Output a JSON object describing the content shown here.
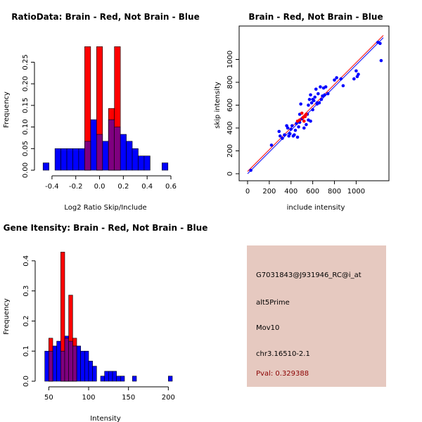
{
  "colors": {
    "red": "#ff0000",
    "blue": "#0000ff",
    "overlap": "#7f007f",
    "panel_bg": "#e6c9c0",
    "pval_text": "#8b0000"
  },
  "chart_data": [
    {
      "type": "histogram",
      "title": "RatioData: Brain - Red, Not Brain - Blue",
      "xlabel": "Log2 Ratio Skip/Include",
      "ylabel": "Frequency",
      "xlim": [
        -0.5,
        0.6
      ],
      "ylim": [
        0,
        0.28
      ],
      "xticks": [
        -0.4,
        -0.2,
        0.0,
        0.2,
        0.4,
        0.6
      ],
      "xtick_labels": [
        "-0.4",
        "-0.2",
        "0.0",
        "0.2",
        "0.4",
        "0.6"
      ],
      "yticks": [
        0.0,
        0.05,
        0.1,
        0.15,
        0.2,
        0.25
      ],
      "ytick_labels": [
        "0.00",
        "0.05",
        "0.10",
        "0.15",
        "0.20",
        "0.25"
      ],
      "series": [
        {
          "name": "Not Brain",
          "color": "#0000ff",
          "bins": [
            [
              -0.475,
              -0.425,
              0.017
            ],
            [
              -0.375,
              -0.325,
              0.05
            ],
            [
              -0.325,
              -0.275,
              0.05
            ],
            [
              -0.275,
              -0.225,
              0.05
            ],
            [
              -0.225,
              -0.175,
              0.05
            ],
            [
              -0.175,
              -0.125,
              0.05
            ],
            [
              -0.125,
              -0.075,
              0.067
            ],
            [
              -0.075,
              -0.025,
              0.117
            ],
            [
              -0.025,
              0.025,
              0.083
            ],
            [
              0.025,
              0.075,
              0.067
            ],
            [
              0.075,
              0.125,
              0.117
            ],
            [
              0.125,
              0.175,
              0.1
            ],
            [
              0.175,
              0.225,
              0.083
            ],
            [
              0.225,
              0.275,
              0.067
            ],
            [
              0.275,
              0.325,
              0.05
            ],
            [
              0.325,
              0.375,
              0.033
            ],
            [
              0.375,
              0.425,
              0.033
            ],
            [
              0.525,
              0.575,
              0.017
            ]
          ]
        },
        {
          "name": "Brain",
          "color": "#ff0000",
          "bins": [
            [
              -0.125,
              -0.075,
              0.286
            ],
            [
              -0.025,
              0.025,
              0.286
            ],
            [
              0.075,
              0.125,
              0.143
            ],
            [
              0.125,
              0.175,
              0.286
            ]
          ]
        }
      ]
    },
    {
      "type": "scatter",
      "title": "Brain - Red, Not Brain - Blue",
      "xlabel": "include intensity",
      "ylabel": "skip intensity",
      "xlim": [
        0,
        1250
      ],
      "ylim": [
        0,
        1200
      ],
      "xticks": [
        0,
        200,
        400,
        600,
        800,
        1000
      ],
      "xtick_labels": [
        "0",
        "200",
        "400",
        "600",
        "800",
        "1000"
      ],
      "yticks": [
        0,
        200,
        400,
        600,
        800,
        1000
      ],
      "ytick_labels": [
        "0",
        "200",
        "400",
        "600",
        "800",
        "1000"
      ],
      "lines": [
        {
          "name": "Brain fit",
          "color": "#ff0000",
          "points": [
            [
              0,
              20
            ],
            [
              1250,
              1210
            ]
          ]
        },
        {
          "name": "Not Brain fit",
          "color": "#0000ff",
          "points": [
            [
              0,
              0
            ],
            [
              1250,
              1190
            ]
          ]
        }
      ],
      "series": [
        {
          "name": "Not Brain",
          "color": "#0000ff",
          "points": [
            [
              30,
              30
            ],
            [
              220,
              250
            ],
            [
              290,
              370
            ],
            [
              300,
              330
            ],
            [
              320,
              310
            ],
            [
              340,
              340
            ],
            [
              360,
              420
            ],
            [
              370,
              400
            ],
            [
              380,
              330
            ],
            [
              390,
              350
            ],
            [
              400,
              390
            ],
            [
              410,
              420
            ],
            [
              420,
              330
            ],
            [
              430,
              340
            ],
            [
              440,
              380
            ],
            [
              450,
              440
            ],
            [
              460,
              320
            ],
            [
              470,
              410
            ],
            [
              480,
              520
            ],
            [
              490,
              610
            ],
            [
              500,
              480
            ],
            [
              520,
              400
            ],
            [
              530,
              500
            ],
            [
              540,
              430
            ],
            [
              550,
              520
            ],
            [
              560,
              600
            ],
            [
              570,
              650
            ],
            [
              580,
              690
            ],
            [
              590,
              620
            ],
            [
              600,
              560
            ],
            [
              610,
              640
            ],
            [
              620,
              670
            ],
            [
              630,
              740
            ],
            [
              640,
              610
            ],
            [
              650,
              700
            ],
            [
              660,
              620
            ],
            [
              670,
              760
            ],
            [
              680,
              650
            ],
            [
              690,
              680
            ],
            [
              700,
              750
            ],
            [
              710,
              690
            ],
            [
              720,
              760
            ],
            [
              740,
              700
            ],
            [
              800,
              820
            ],
            [
              820,
              840
            ],
            [
              860,
              830
            ],
            [
              880,
              770
            ],
            [
              980,
              830
            ],
            [
              1000,
              900
            ],
            [
              1010,
              850
            ],
            [
              1020,
              870
            ],
            [
              1200,
              1150
            ],
            [
              1220,
              1140
            ],
            [
              1230,
              990
            ],
            [
              580,
              460
            ],
            [
              560,
              470
            ],
            [
              640,
              620
            ],
            [
              480,
              450
            ],
            [
              600,
              650
            ]
          ]
        },
        {
          "name": "Brain",
          "color": "#ff0000",
          "points": [
            [
              500,
              530
            ],
            [
              510,
              490
            ],
            [
              520,
              460
            ],
            [
              530,
              500
            ],
            [
              540,
              520
            ],
            [
              480,
              470
            ],
            [
              460,
              460
            ]
          ]
        }
      ]
    },
    {
      "type": "histogram",
      "title": "Gene Itensity: Brain - Red, Not Brain - Blue",
      "xlabel": "Intensity",
      "ylabel": "Frequency",
      "xlim": [
        40,
        205
      ],
      "ylim": [
        0,
        0.43
      ],
      "xticks": [
        50,
        100,
        150,
        200
      ],
      "xtick_labels": [
        "50",
        "100",
        "150",
        "200"
      ],
      "yticks": [
        0.0,
        0.1,
        0.2,
        0.3,
        0.4
      ],
      "ytick_labels": [
        "0.0",
        "0.1",
        "0.2",
        "0.3",
        "0.4"
      ],
      "series": [
        {
          "name": "Not Brain",
          "color": "#0000ff",
          "bins": [
            [
              45,
              50,
              0.1
            ],
            [
              50,
              55,
              0.1
            ],
            [
              55,
              60,
              0.117
            ],
            [
              60,
              65,
              0.133
            ],
            [
              65,
              70,
              0.1
            ],
            [
              70,
              75,
              0.15
            ],
            [
              75,
              80,
              0.133
            ],
            [
              80,
              85,
              0.117
            ],
            [
              85,
              90,
              0.117
            ],
            [
              90,
              95,
              0.1
            ],
            [
              95,
              100,
              0.1
            ],
            [
              100,
              105,
              0.067
            ],
            [
              105,
              110,
              0.05
            ],
            [
              115,
              120,
              0.017
            ],
            [
              120,
              125,
              0.033
            ],
            [
              125,
              130,
              0.033
            ],
            [
              130,
              135,
              0.033
            ],
            [
              135,
              140,
              0.017
            ],
            [
              140,
              145,
              0.017
            ],
            [
              155,
              160,
              0.017
            ],
            [
              200,
              205,
              0.017
            ]
          ]
        },
        {
          "name": "Brain",
          "color": "#ff0000",
          "bins": [
            [
              50,
              55,
              0.143
            ],
            [
              65,
              70,
              0.429
            ],
            [
              70,
              75,
              0.143
            ],
            [
              75,
              80,
              0.286
            ],
            [
              80,
              85,
              0.143
            ]
          ]
        }
      ]
    }
  ],
  "info": {
    "probe_id": "G7031843@J931946_RC@i_at",
    "event_type": "alt5Prime",
    "gene": "Mov10",
    "location": "chr3.16510-2.1",
    "pval": "Pval: 0.329388"
  }
}
